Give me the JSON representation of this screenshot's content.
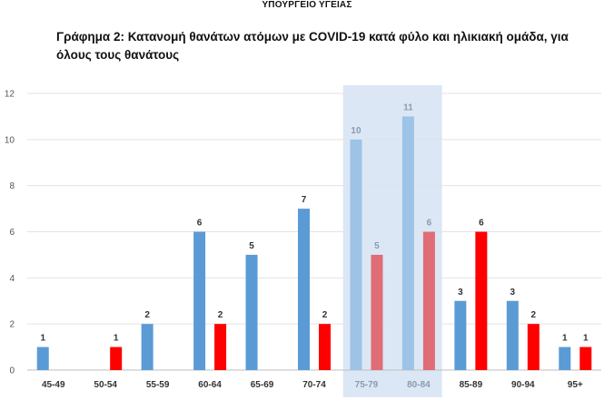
{
  "header": {
    "ministry": "ΥΠΟΥΡΓΕΙΟ ΥΓΕΙΑΣ"
  },
  "chart_data": {
    "type": "bar",
    "title": "Γράφημα 2: Κατανομή θανάτων ατόμων με COVID-19 κατά φύλο και ηλικιακή ομάδα, για όλους τους θανάτους",
    "categories": [
      "45-49",
      "50-54",
      "55-59",
      "60-64",
      "65-69",
      "70-74",
      "75-79",
      "80-84",
      "85-89",
      "90-94",
      "95+"
    ],
    "series": [
      {
        "values": [
          1,
          null,
          2,
          6,
          5,
          7,
          10,
          11,
          3,
          3,
          1
        ],
        "color": "#5b9bd5"
      },
      {
        "values": [
          null,
          1,
          null,
          2,
          null,
          2,
          5,
          6,
          6,
          2,
          1
        ],
        "color": "#ff0000"
      }
    ],
    "highlight": {
      "categories": [
        "75-79",
        "80-84"
      ],
      "color": "#dbe7f5",
      "faded_colors": [
        "#9dc3e6",
        "#e06c75"
      ]
    },
    "ylim": [
      0,
      12
    ],
    "yticks": [
      0,
      2,
      4,
      6,
      8,
      10,
      12
    ],
    "grid": true,
    "legend": "none"
  }
}
